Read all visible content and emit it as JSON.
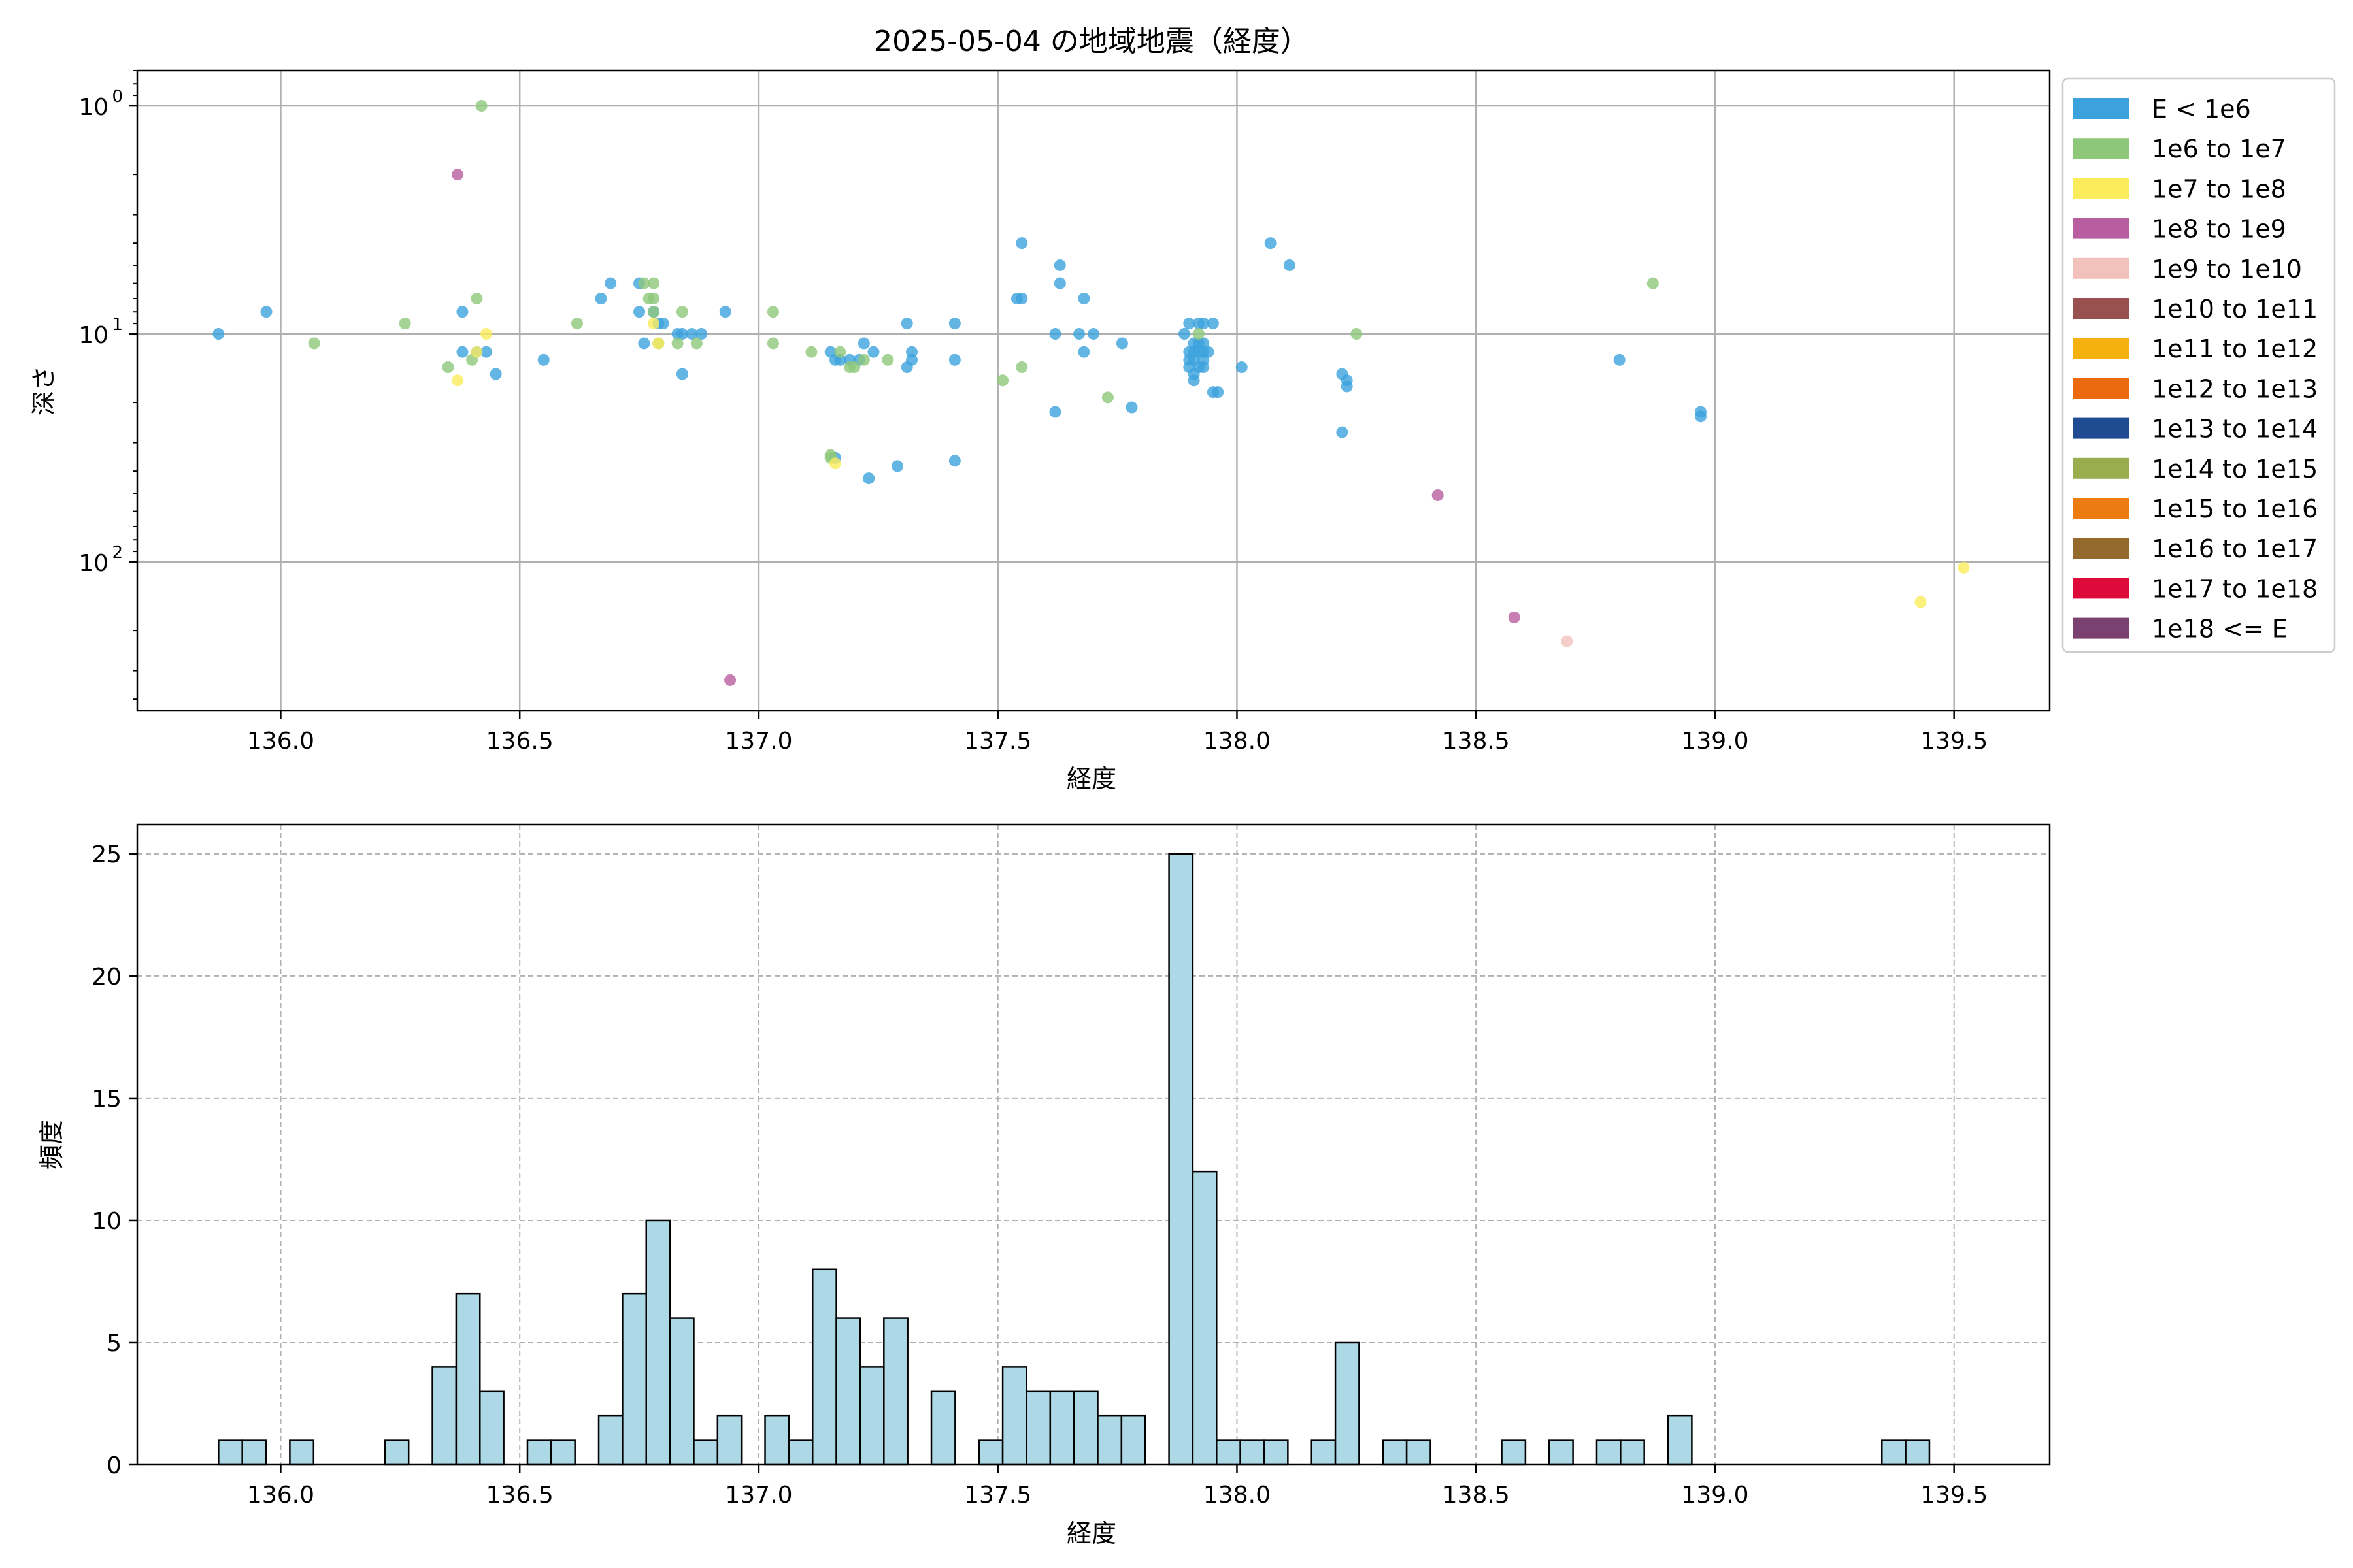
{
  "chart_data": [
    {
      "type": "scatter",
      "title": "2025-05-04 の地域地震（経度）",
      "xlabel": "経度",
      "ylabel": "深さ",
      "xlim": [
        135.7,
        139.7
      ],
      "yscale": "log",
      "yaxis_inverted": true,
      "ylim": [
        0.7,
        450
      ],
      "xticks": [
        "136.0",
        "136.5",
        "137.0",
        "137.5",
        "138.0",
        "138.5",
        "139.0",
        "139.5"
      ],
      "yticks": [
        {
          "value": 1,
          "label": "10"
        },
        {
          "value": 10,
          "label": "10"
        },
        {
          "value": 100,
          "label": "10"
        }
      ],
      "ytick_exponents": [
        "0",
        "1",
        "2"
      ],
      "grid": true,
      "legend_position": "outside-right",
      "legend": [
        {
          "label": "E < 1e6",
          "color": "#3ca2dd"
        },
        {
          "label": "1e6 to 1e7",
          "color": "#8dc87a"
        },
        {
          "label": "1e7 to 1e8",
          "color": "#fbec5d"
        },
        {
          "label": "1e8 to 1e9",
          "color": "#b85ea0"
        },
        {
          "label": "1e9 to 1e10",
          "color": "#f3c1bb"
        },
        {
          "label": "1e10 to 1e11",
          "color": "#98514e"
        },
        {
          "label": "1e11 to 1e12",
          "color": "#f4b10f"
        },
        {
          "label": "1e12 to 1e13",
          "color": "#eb6a10"
        },
        {
          "label": "1e13 to 1e14",
          "color": "#1f4b92"
        },
        {
          "label": "1e14 to 1e15",
          "color": "#99ad4e"
        },
        {
          "label": "1e15 to 1e16",
          "color": "#ec7c12"
        },
        {
          "label": "1e16 to 1e17",
          "color": "#956b2d"
        },
        {
          "label": "1e17 to 1e18",
          "color": "#dd0a3a"
        },
        {
          "label": "1e18 <= E",
          "color": "#7a4070"
        }
      ],
      "series": [
        {
          "name": "E < 1e6",
          "points": [
            [
              135.87,
              10
            ],
            [
              135.97,
              8
            ],
            [
              136.38,
              8
            ],
            [
              136.38,
              12
            ],
            [
              136.41,
              12
            ],
            [
              136.43,
              12
            ],
            [
              136.45,
              15
            ],
            [
              136.55,
              13
            ],
            [
              136.67,
              7
            ],
            [
              136.69,
              6
            ],
            [
              136.75,
              6
            ],
            [
              136.75,
              8
            ],
            [
              136.76,
              11
            ],
            [
              136.78,
              8
            ],
            [
              136.79,
              9
            ],
            [
              136.8,
              9
            ],
            [
              136.83,
              10
            ],
            [
              136.84,
              10
            ],
            [
              136.84,
              15
            ],
            [
              136.86,
              10
            ],
            [
              136.88,
              10
            ],
            [
              136.93,
              8
            ],
            [
              137.16,
              35
            ],
            [
              137.15,
              12
            ],
            [
              137.16,
              13
            ],
            [
              137.17,
              13
            ],
            [
              137.19,
              13
            ],
            [
              137.21,
              13
            ],
            [
              137.22,
              11
            ],
            [
              137.24,
              12
            ],
            [
              137.23,
              43
            ],
            [
              137.29,
              38
            ],
            [
              137.31,
              9
            ],
            [
              137.31,
              14
            ],
            [
              137.32,
              13
            ],
            [
              137.32,
              12
            ],
            [
              137.41,
              9
            ],
            [
              137.41,
              13
            ],
            [
              137.41,
              36
            ],
            [
              137.54,
              7
            ],
            [
              137.55,
              7
            ],
            [
              137.55,
              4
            ],
            [
              137.62,
              10
            ],
            [
              137.62,
              22
            ],
            [
              137.63,
              6
            ],
            [
              137.63,
              5
            ],
            [
              137.67,
              10
            ],
            [
              137.68,
              7
            ],
            [
              137.68,
              12
            ],
            [
              137.7,
              10
            ],
            [
              137.76,
              11
            ],
            [
              137.78,
              21
            ],
            [
              137.89,
              10
            ],
            [
              137.9,
              9
            ],
            [
              137.9,
              12
            ],
            [
              137.9,
              13
            ],
            [
              137.9,
              14
            ],
            [
              137.91,
              11
            ],
            [
              137.91,
              15
            ],
            [
              137.91,
              16
            ],
            [
              137.91,
              13
            ],
            [
              137.91,
              12
            ],
            [
              137.92,
              9
            ],
            [
              137.92,
              11
            ],
            [
              137.92,
              12
            ],
            [
              137.92,
              14
            ],
            [
              137.93,
              9
            ],
            [
              137.93,
              13
            ],
            [
              137.93,
              11
            ],
            [
              137.93,
              12
            ],
            [
              137.93,
              14
            ],
            [
              137.94,
              12
            ],
            [
              137.95,
              18
            ],
            [
              137.95,
              9
            ],
            [
              137.96,
              18
            ],
            [
              138.01,
              14
            ],
            [
              138.07,
              4
            ],
            [
              138.11,
              5
            ],
            [
              138.22,
              15
            ],
            [
              138.23,
              16
            ],
            [
              138.23,
              17
            ],
            [
              138.22,
              27
            ],
            [
              138.8,
              13
            ],
            [
              138.97,
              22
            ],
            [
              138.97,
              23
            ]
          ]
        },
        {
          "name": "1e6 to 1e7",
          "points": [
            [
              136.07,
              11
            ],
            [
              136.26,
              9
            ],
            [
              136.35,
              14
            ],
            [
              136.4,
              13
            ],
            [
              136.41,
              7
            ],
            [
              136.42,
              1
            ],
            [
              136.62,
              9
            ],
            [
              136.76,
              6
            ],
            [
              136.77,
              7
            ],
            [
              136.78,
              7
            ],
            [
              136.78,
              6
            ],
            [
              136.78,
              8
            ],
            [
              136.79,
              11
            ],
            [
              136.83,
              11
            ],
            [
              136.84,
              8
            ],
            [
              136.87,
              11
            ],
            [
              137.03,
              8
            ],
            [
              137.03,
              11
            ],
            [
              137.11,
              12
            ],
            [
              137.15,
              35
            ],
            [
              137.15,
              34
            ],
            [
              137.17,
              12
            ],
            [
              137.19,
              14
            ],
            [
              137.2,
              14
            ],
            [
              137.22,
              13
            ],
            [
              137.27,
              13
            ],
            [
              137.51,
              16
            ],
            [
              137.55,
              14
            ],
            [
              137.73,
              19
            ],
            [
              137.92,
              10
            ],
            [
              138.25,
              10
            ],
            [
              138.87,
              6
            ]
          ]
        },
        {
          "name": "1e7 to 1e8",
          "points": [
            [
              136.37,
              16
            ],
            [
              136.41,
              12
            ],
            [
              136.43,
              10
            ],
            [
              136.78,
              9
            ],
            [
              136.79,
              11
            ],
            [
              137.16,
              37
            ],
            [
              139.43,
              150
            ],
            [
              139.52,
              106
            ]
          ]
        },
        {
          "name": "1e8 to 1e9",
          "points": [
            [
              136.37,
              2
            ],
            [
              136.94,
              330
            ],
            [
              138.42,
              51
            ],
            [
              138.58,
              175
            ]
          ]
        },
        {
          "name": "1e9 to 1e10",
          "points": [
            [
              138.69,
              223
            ]
          ]
        }
      ]
    },
    {
      "type": "bar",
      "title": "",
      "xlabel": "経度",
      "ylabel": "頻度",
      "xlim": [
        135.7,
        139.7
      ],
      "ylim": [
        0,
        26.2
      ],
      "xticks": [
        "136.0",
        "136.5",
        "137.0",
        "137.5",
        "138.0",
        "138.5",
        "139.0",
        "139.5"
      ],
      "yticks": [
        "0",
        "5",
        "10",
        "15",
        "20",
        "25"
      ],
      "grid": true,
      "bar_color": "#add8e6",
      "bin_width": 0.0497,
      "bins_start": 135.87,
      "values": [
        1,
        1,
        0,
        1,
        0,
        0,
        0,
        1,
        0,
        4,
        7,
        3,
        0,
        1,
        1,
        0,
        2,
        7,
        10,
        6,
        1,
        2,
        0,
        2,
        1,
        8,
        6,
        4,
        6,
        0,
        3,
        0,
        1,
        4,
        3,
        3,
        3,
        2,
        2,
        0,
        25,
        12,
        1,
        1,
        1,
        0,
        1,
        5,
        0,
        1,
        1,
        0,
        0,
        0,
        1,
        0,
        1,
        0,
        1,
        1,
        0,
        2,
        0,
        0,
        0,
        0,
        0,
        0,
        0,
        0,
        1,
        1
      ]
    }
  ]
}
